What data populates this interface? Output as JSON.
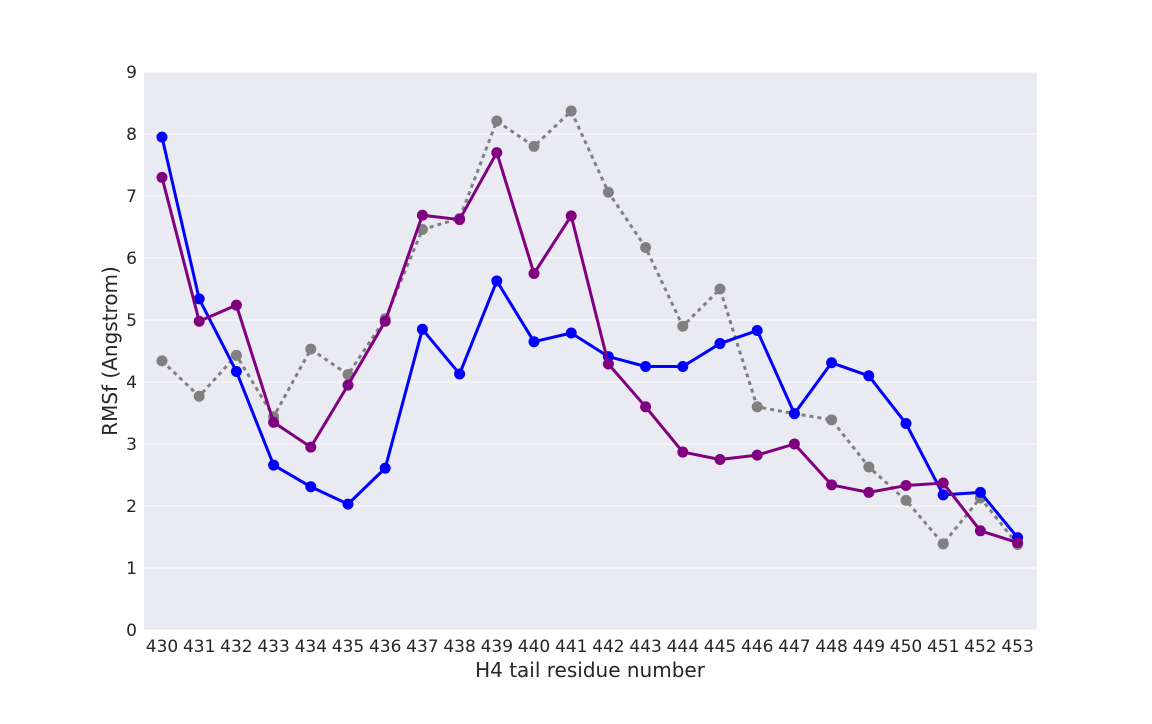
{
  "chart_data": {
    "type": "line",
    "title": "",
    "xlabel": "H4 tail residue number",
    "ylabel": "RMSf (Angstrom)",
    "ylim": [
      0,
      9
    ],
    "yticks": [
      "0",
      "1",
      "2",
      "3",
      "4",
      "5",
      "6",
      "7",
      "8",
      "9"
    ],
    "grid": true,
    "x": [
      "430",
      "431",
      "432",
      "433",
      "434",
      "435",
      "436",
      "437",
      "438",
      "439",
      "440",
      "441",
      "442",
      "443",
      "444",
      "445",
      "446",
      "447",
      "448",
      "449",
      "450",
      "451",
      "452",
      "453"
    ],
    "series": [
      {
        "color": "#808080",
        "style": "dotted",
        "values": [
          4.34,
          3.77,
          4.43,
          3.44,
          4.53,
          4.12,
          5.02,
          6.46,
          6.64,
          8.21,
          7.8,
          8.37,
          7.06,
          6.17,
          4.9,
          5.5,
          3.6,
          3.49,
          3.39,
          2.63,
          2.09,
          1.39,
          2.13,
          1.38
        ]
      },
      {
        "color": "#0000ff",
        "style": "solid",
        "values": [
          7.95,
          5.34,
          4.17,
          2.66,
          2.31,
          2.03,
          2.61,
          4.85,
          4.13,
          5.63,
          4.65,
          4.79,
          4.41,
          4.25,
          4.25,
          4.62,
          4.83,
          3.49,
          4.31,
          4.1,
          3.33,
          2.18,
          2.22,
          1.49
        ]
      },
      {
        "color": "#800080",
        "style": "solid",
        "values": [
          7.3,
          4.98,
          5.24,
          3.35,
          2.95,
          3.95,
          4.98,
          6.69,
          6.62,
          7.7,
          5.75,
          6.68,
          4.29,
          3.6,
          2.87,
          2.75,
          2.82,
          3.0,
          2.34,
          2.22,
          2.33,
          2.37,
          1.6,
          1.41
        ]
      }
    ]
  }
}
